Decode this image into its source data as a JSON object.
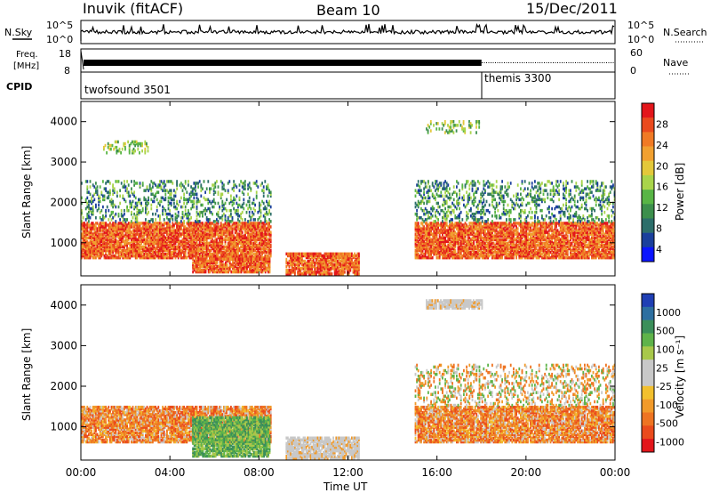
{
  "header": {
    "station": "Inuvik (fitACF)",
    "beam": "Beam 10",
    "date": "15/Dec/2011"
  },
  "top_panels": {
    "nsky_label": "N.Sky",
    "nsky_ticks": [
      "10^5",
      "10^0"
    ],
    "nsearch_label": "N.Search",
    "nsearch_ticks": [
      "10^5",
      "10^0"
    ],
    "freq_label_1": "Freq.",
    "freq_label_2": "[MHz]",
    "freq_ticks": [
      "18",
      "8"
    ],
    "nave_label": "Nave",
    "nave_ticks": [
      "60",
      "0"
    ],
    "cpid_label": "CPID",
    "cpid_modes": [
      {
        "name": "twofsound 3501",
        "start_hour": 0
      },
      {
        "name": "themis 3300",
        "start_hour": 18
      }
    ]
  },
  "x_axis": {
    "label": "Time UT",
    "ticks": [
      "00:00",
      "04:00",
      "08:00",
      "12:00",
      "16:00",
      "20:00",
      "00:00"
    ],
    "range_hours": [
      0,
      24
    ]
  },
  "chart_data": [
    {
      "type": "heatmap",
      "name": "power-panel",
      "ylabel": "Slant Range [km]",
      "yticks": [
        "1000",
        "2000",
        "3000",
        "4000"
      ],
      "ylim": [
        180,
        4500
      ],
      "colorbar_label": "Power [dB]",
      "colorbar_ticks": [
        "4",
        "8",
        "12",
        "16",
        "20",
        "24",
        "28"
      ],
      "colorbar_colors": [
        "#0a14ff",
        "#1a3f9c",
        "#2c6e6a",
        "#3c8f4c",
        "#58b545",
        "#a9d44a",
        "#e3c83a",
        "#f1a030",
        "#f07a25",
        "#ea4a1e",
        "#e3161b"
      ],
      "echo_regions": [
        {
          "t": [
            0,
            8.5
          ],
          "r": [
            600,
            1500
          ],
          "level": "high"
        },
        {
          "t": [
            5,
            8.5
          ],
          "r": [
            250,
            600
          ],
          "level": "high"
        },
        {
          "t": [
            9.2,
            12.5
          ],
          "r": [
            200,
            700
          ],
          "level": "high"
        },
        {
          "t": [
            15,
            24
          ],
          "r": [
            600,
            1500
          ],
          "level": "high"
        },
        {
          "t": [
            0,
            8.5
          ],
          "r": [
            1500,
            2500
          ],
          "level": "low"
        },
        {
          "t": [
            15,
            24
          ],
          "r": [
            1500,
            2500
          ],
          "level": "low"
        },
        {
          "t": [
            15.5,
            18
          ],
          "r": [
            3700,
            4000
          ],
          "level": "mid"
        },
        {
          "t": [
            1,
            3
          ],
          "r": [
            3200,
            3500
          ],
          "level": "mid"
        }
      ]
    },
    {
      "type": "heatmap",
      "name": "velocity-panel",
      "ylabel": "Slant Range [km]",
      "yticks": [
        "1000",
        "2000",
        "3000",
        "4000"
      ],
      "ylim": [
        180,
        4500
      ],
      "colorbar_label": "Velocity [m s⁻¹]",
      "colorbar_ticks": [
        "1000",
        "500",
        "100",
        "25",
        "-25",
        "-100",
        "-500",
        "-1000"
      ],
      "colorbar_colors": [
        "#1f3fb4",
        "#2d6fa0",
        "#3b8f5a",
        "#5fb34a",
        "#a8c84a",
        "#c8c8c8",
        "#c8c8c8",
        "#f2c02e",
        "#f19a2a",
        "#ee7422",
        "#ea4b1c",
        "#e3161b"
      ],
      "echo_regions": [
        {
          "t": [
            0,
            8.5
          ],
          "r": [
            600,
            1500
          ],
          "level": "negative"
        },
        {
          "t": [
            5,
            8.5
          ],
          "r": [
            250,
            1200
          ],
          "level": "positive"
        },
        {
          "t": [
            9.2,
            12.5
          ],
          "r": [
            200,
            700
          ],
          "level": "ground"
        },
        {
          "t": [
            15,
            24
          ],
          "r": [
            600,
            1500
          ],
          "level": "negative"
        },
        {
          "t": [
            15,
            24
          ],
          "r": [
            1500,
            2500
          ],
          "level": "mixed"
        },
        {
          "t": [
            15.5,
            18
          ],
          "r": [
            3900,
            4100
          ],
          "level": "ground"
        }
      ]
    }
  ]
}
